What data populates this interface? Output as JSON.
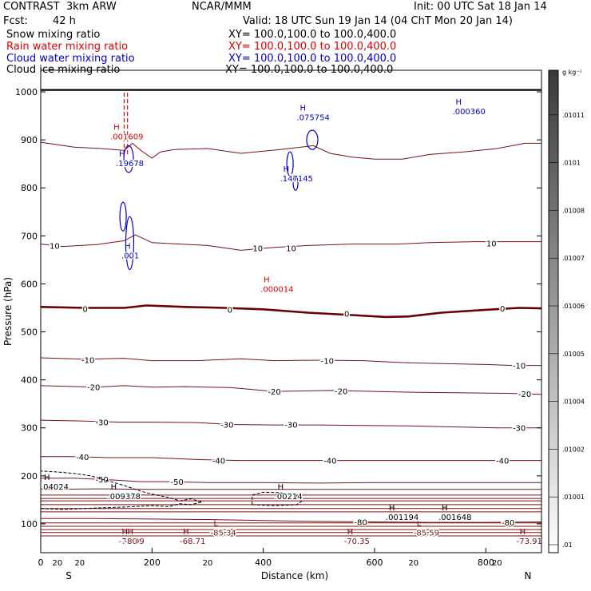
{
  "header": {
    "model": "CONTRAST  3km ARW",
    "org": "NCAR/MMM",
    "init": "Init: 00 UTC Sat 18 Jan 14",
    "fcst_label": "Fcst:",
    "fcst_value": "42 h",
    "valid": "Valid: 18 UTC Sun 19 Jan 14 (04 ChT Mon 20 Jan 14)"
  },
  "fields": [
    {
      "name": "Snow mixing ratio",
      "xy": "XY= 100.0,100.0 to 100.0,400.0",
      "color": "#000000"
    },
    {
      "name": "Rain water mixing ratio",
      "xy": "XY= 100.0,100.0 to 100.0,400.0",
      "color": "#e00000"
    },
    {
      "name": "Cloud water mixing ratio",
      "xy": "XY= 100.0,100.0 to 100.0,400.0",
      "color": "#0000cc"
    },
    {
      "name": "Cloud ice mixing ratio",
      "xy": "XY= 100.0,100.0 to 100.0,400.0",
      "color": "#000000"
    }
  ],
  "colorbar": {
    "unit": "g kg⁻¹",
    "labels": [
      ".01011",
      ".0101",
      ".01008",
      ".01007",
      ".01006",
      ".01005",
      ".01004",
      ".01002",
      ".01001",
      ".01"
    ]
  },
  "colors": {
    "temperature": "#7a1010",
    "zero_isotherm": "#6a0000",
    "rain": "#e00000",
    "cloud_water": "#0000cc",
    "ground": "#000000"
  },
  "chart_data": {
    "type": "line",
    "xlabel": "Distance (km)",
    "ylabel": "Pressure (hPa)",
    "xlim": [
      0,
      900
    ],
    "ylim": [
      1045,
      40
    ],
    "x_ticks": [
      0,
      200,
      400,
      600,
      800
    ],
    "y_ticks": [
      100,
      200,
      300,
      400,
      500,
      600,
      700,
      800,
      900,
      1000
    ],
    "x_end_labels": {
      "left": "S",
      "right": "N"
    },
    "ground_pressure": 1004,
    "isotherms": [
      {
        "value": 20,
        "labels": [
          [
            30,
            20
          ],
          [
            70,
            20
          ],
          [
            300,
            20
          ],
          [
            670,
            20
          ],
          [
            820,
            20
          ]
        ],
        "points": [
          [
            0,
            895
          ],
          [
            60,
            885
          ],
          [
            110,
            882
          ],
          [
            150,
            878
          ],
          [
            165,
            893
          ],
          [
            180,
            878
          ],
          [
            200,
            862
          ],
          [
            215,
            875
          ],
          [
            240,
            880
          ],
          [
            300,
            882
          ],
          [
            360,
            872
          ],
          [
            430,
            880
          ],
          [
            490,
            888
          ],
          [
            520,
            872
          ],
          [
            560,
            864
          ],
          [
            600,
            860
          ],
          [
            650,
            860
          ],
          [
            700,
            870
          ],
          [
            760,
            875
          ],
          [
            820,
            882
          ],
          [
            870,
            893
          ],
          [
            900,
            893
          ]
        ]
      },
      {
        "value": 10,
        "labels": [
          [
            25,
            680
          ],
          [
            390,
            675
          ],
          [
            450,
            675
          ],
          [
            810,
            685
          ]
        ],
        "points": [
          [
            0,
            683
          ],
          [
            40,
            678
          ],
          [
            100,
            682
          ],
          [
            150,
            690
          ],
          [
            170,
            702
          ],
          [
            200,
            686
          ],
          [
            250,
            683
          ],
          [
            300,
            680
          ],
          [
            360,
            670
          ],
          [
            420,
            676
          ],
          [
            480,
            680
          ],
          [
            560,
            683
          ],
          [
            640,
            683
          ],
          [
            700,
            686
          ],
          [
            780,
            688
          ],
          [
            850,
            688
          ],
          [
            900,
            688
          ]
        ]
      },
      {
        "value": 0,
        "labels": [
          [
            80,
            548
          ],
          [
            340,
            547
          ],
          [
            550,
            538
          ],
          [
            830,
            549
          ]
        ],
        "bold": true,
        "points": [
          [
            0,
            552
          ],
          [
            80,
            550
          ],
          [
            150,
            550
          ],
          [
            190,
            555
          ],
          [
            260,
            552
          ],
          [
            330,
            550
          ],
          [
            400,
            547
          ],
          [
            480,
            540
          ],
          [
            560,
            535
          ],
          [
            620,
            531
          ],
          [
            660,
            532
          ],
          [
            720,
            540
          ],
          [
            800,
            546
          ],
          [
            860,
            550
          ],
          [
            900,
            549
          ]
        ]
      },
      {
        "value": -10,
        "labels": [
          [
            85,
            442
          ],
          [
            515,
            440
          ],
          [
            860,
            430
          ]
        ],
        "points": [
          [
            0,
            446
          ],
          [
            80,
            443
          ],
          [
            150,
            445
          ],
          [
            200,
            440
          ],
          [
            280,
            440
          ],
          [
            360,
            444
          ],
          [
            420,
            440
          ],
          [
            500,
            441
          ],
          [
            580,
            440
          ],
          [
            650,
            436
          ],
          [
            720,
            434
          ],
          [
            800,
            432
          ],
          [
            850,
            430
          ],
          [
            900,
            430
          ]
        ]
      },
      {
        "value": -20,
        "labels": [
          [
            95,
            385
          ],
          [
            420,
            376
          ],
          [
            540,
            377
          ],
          [
            870,
            371
          ]
        ],
        "points": [
          [
            0,
            388
          ],
          [
            100,
            385
          ],
          [
            150,
            388
          ],
          [
            200,
            385
          ],
          [
            260,
            386
          ],
          [
            340,
            384
          ],
          [
            420,
            376
          ],
          [
            520,
            378
          ],
          [
            600,
            376
          ],
          [
            680,
            374
          ],
          [
            760,
            373
          ],
          [
            840,
            372
          ],
          [
            900,
            370
          ]
        ]
      },
      {
        "value": -30,
        "labels": [
          [
            110,
            312
          ],
          [
            335,
            307
          ],
          [
            450,
            307
          ],
          [
            860,
            300
          ]
        ],
        "points": [
          [
            0,
            316
          ],
          [
            80,
            314
          ],
          [
            140,
            312
          ],
          [
            200,
            312
          ],
          [
            280,
            311
          ],
          [
            340,
            307
          ],
          [
            420,
            306
          ],
          [
            500,
            306
          ],
          [
            580,
            305
          ],
          [
            660,
            304
          ],
          [
            740,
            302
          ],
          [
            820,
            300
          ],
          [
            900,
            300
          ]
        ]
      },
      {
        "value": -40,
        "labels": [
          [
            75,
            240
          ],
          [
            320,
            232
          ],
          [
            520,
            232
          ],
          [
            830,
            232
          ]
        ],
        "points": [
          [
            0,
            240
          ],
          [
            60,
            240
          ],
          [
            120,
            238
          ],
          [
            200,
            238
          ],
          [
            280,
            234
          ],
          [
            360,
            232
          ],
          [
            440,
            232
          ],
          [
            520,
            232
          ],
          [
            600,
            232
          ],
          [
            680,
            232
          ],
          [
            760,
            232
          ],
          [
            840,
            232
          ],
          [
            900,
            232
          ]
        ]
      },
      {
        "value": -50,
        "labels": [
          [
            110,
            193
          ],
          [
            245,
            188
          ]
        ],
        "points": [
          [
            0,
            195
          ],
          [
            60,
            195
          ],
          [
            120,
            192
          ],
          [
            180,
            188
          ],
          [
            230,
            188
          ],
          [
            300,
            186
          ],
          [
            400,
            186
          ],
          [
            500,
            185
          ],
          [
            600,
            186
          ],
          [
            700,
            186
          ],
          [
            800,
            186
          ],
          [
            900,
            186
          ]
        ]
      },
      {
        "value": -60,
        "labels": [],
        "points": [
          [
            0,
            172
          ],
          [
            100,
            173
          ],
          [
            200,
            172
          ],
          [
            300,
            172
          ],
          [
            400,
            172
          ],
          [
            500,
            172
          ],
          [
            600,
            172
          ],
          [
            700,
            172
          ],
          [
            800,
            172
          ],
          [
            900,
            172
          ]
        ]
      },
      {
        "value": -70,
        "labels": [],
        "points": [
          [
            0,
            160
          ],
          [
            100,
            160
          ],
          [
            200,
            160
          ],
          [
            300,
            160
          ],
          [
            400,
            160
          ],
          [
            500,
            160
          ],
          [
            600,
            160
          ],
          [
            700,
            160
          ],
          [
            800,
            160
          ],
          [
            900,
            160
          ]
        ]
      },
      {
        "value": -80,
        "labels": [
          [
            575,
            104
          ],
          [
            840,
            103
          ]
        ],
        "points": [
          [
            0,
            111
          ],
          [
            100,
            111
          ],
          [
            200,
            110
          ],
          [
            300,
            109
          ],
          [
            400,
            107
          ],
          [
            500,
            105
          ],
          [
            600,
            104
          ],
          [
            700,
            103
          ],
          [
            800,
            103
          ],
          [
            900,
            104
          ]
        ]
      }
    ],
    "upper_lines": [
      75,
      82,
      88,
      95,
      102,
      125,
      132,
      140,
      148,
      153
    ],
    "extrema": [
      {
        "kind": "H",
        "x": 140,
        "p": 75,
        "label": "-70.99",
        "color": "#7a1010"
      },
      {
        "kind": "H",
        "x": 150,
        "p": 75,
        "label": "-80",
        "color": "#7a1010"
      },
      {
        "kind": "H",
        "x": 250,
        "p": 75,
        "label": "-68.71",
        "color": "#7a1010"
      },
      {
        "kind": "L",
        "x": 305,
        "p": 92,
        "label": "-85.34",
        "color": "#7a1010"
      },
      {
        "kind": "H",
        "x": 545,
        "p": 75,
        "label": "-70.35",
        "color": "#7a1010"
      },
      {
        "kind": "L",
        "x": 670,
        "p": 92,
        "label": "-85.59",
        "color": "#7a1010"
      },
      {
        "kind": "H",
        "x": 855,
        "p": 75,
        "label": "-73.91",
        "color": "#7a1010"
      },
      {
        "kind": "H",
        "x": 620,
        "p": 125,
        "label": ".001194",
        "color": "#000000"
      },
      {
        "kind": "H",
        "x": 715,
        "p": 125,
        "label": ".001648",
        "color": "#000000"
      },
      {
        "kind": "H",
        "x": 120,
        "p": 168,
        "label": ".009378",
        "color": "#000000"
      },
      {
        "kind": "H",
        "x": 420,
        "p": 168,
        "label": ".00214",
        "color": "#000000"
      },
      {
        "kind": "H",
        "x": 0,
        "p": 188,
        "label": ".04024",
        "color": "#000000"
      },
      {
        "kind": "H",
        "x": 395,
        "p": 600,
        "label": ".000014",
        "color": "#e00000"
      },
      {
        "kind": "H",
        "x": 145,
        "p": 670,
        "label": ".001",
        "color": "#0000cc"
      },
      {
        "kind": "H",
        "x": 430,
        "p": 830,
        "label": ".147145",
        "color": "#0000cc"
      },
      {
        "kind": "H",
        "x": 135,
        "p": 862,
        "label": ".19678",
        "color": "#0000cc"
      },
      {
        "kind": "H",
        "x": 125,
        "p": 918,
        "label": ".001609",
        "color": "#e00000"
      },
      {
        "kind": "H",
        "x": 460,
        "p": 958,
        "label": ".075754",
        "color": "#0000cc"
      },
      {
        "kind": "H",
        "x": 740,
        "p": 970,
        "label": ".000360",
        "color": "#0000cc"
      }
    ]
  }
}
